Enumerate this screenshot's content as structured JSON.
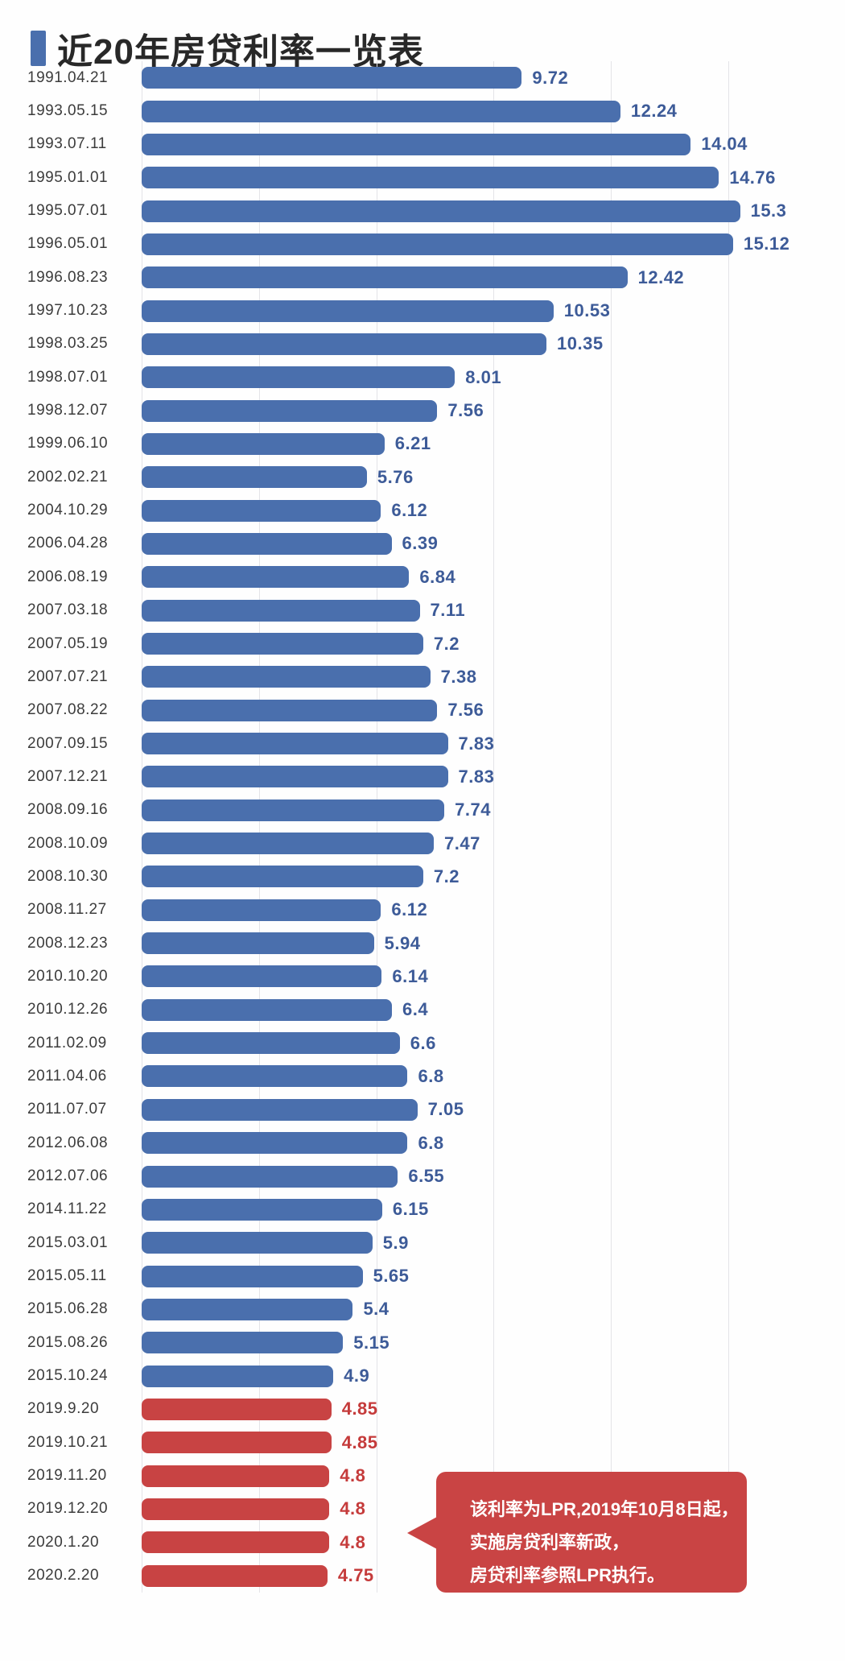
{
  "title": {
    "text": "近20年房贷利率一览表"
  },
  "chart_data": {
    "type": "bar",
    "orientation": "horizontal",
    "title": "近20年房贷利率一览表",
    "xlabel": "",
    "ylabel": "",
    "xlim": [
      0,
      16.5
    ],
    "grid": true,
    "gridline_values": [
      0,
      3,
      6,
      9,
      12,
      15
    ],
    "categories": [
      "1991.04.21",
      "1993.05.15",
      "1993.07.11",
      "1995.01.01",
      "1995.07.01",
      "1996.05.01",
      "1996.08.23",
      "1997.10.23",
      "1998.03.25",
      "1998.07.01",
      "1998.12.07",
      "1999.06.10",
      "2002.02.21",
      "2004.10.29",
      "2006.04.28",
      "2006.08.19",
      "2007.03.18",
      "2007.05.19",
      "2007.07.21",
      "2007.08.22",
      "2007.09.15",
      "2007.12.21",
      "2008.09.16",
      "2008.10.09",
      "2008.10.30",
      "2008.11.27",
      "2008.12.23",
      "2010.10.20",
      "2010.12.26",
      "2011.02.09",
      "2011.04.06",
      "2011.07.07",
      "2012.06.08",
      "2012.07.06",
      "2014.11.22",
      "2015.03.01",
      "2015.05.11",
      "2015.06.28",
      "2015.08.26",
      "2015.10.24",
      "2019.9.20",
      "2019.10.21",
      "2019.11.20",
      "2019.12.20",
      "2020.1.20",
      "2020.2.20"
    ],
    "values": [
      9.72,
      12.24,
      14.04,
      14.76,
      15.3,
      15.12,
      12.42,
      10.53,
      10.35,
      8.01,
      7.56,
      6.21,
      5.76,
      6.12,
      6.39,
      6.84,
      7.11,
      7.2,
      7.38,
      7.56,
      7.83,
      7.83,
      7.74,
      7.47,
      7.2,
      6.12,
      5.94,
      6.14,
      6.4,
      6.6,
      6.8,
      7.05,
      6.8,
      6.55,
      6.15,
      5.9,
      5.65,
      5.4,
      5.15,
      4.9,
      4.85,
      4.85,
      4.8,
      4.8,
      4.8,
      4.75
    ],
    "lpr_from_index": 40,
    "bar_color_base": "#4a6fad",
    "bar_color_lpr": "#c84343",
    "value_label_color_base": "#3d5b98",
    "value_label_color_lpr": "#c53b3b"
  },
  "annotation": {
    "box_color": "#c94444",
    "lines": [
      "该利率为LPR,2019年10月8日起，",
      "实施房贷利率新政，",
      "房贷利率参照LPR执行。"
    ]
  },
  "colors": {
    "accent": "#4a6fad",
    "title_text": "#282828",
    "date_label": "#3c3c3c",
    "gridline": "#e4e4e8",
    "background": "#fefefe"
  }
}
